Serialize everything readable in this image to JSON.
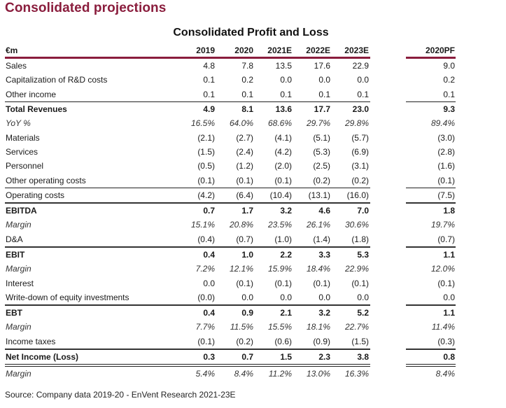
{
  "page_title": "Consolidated projections",
  "table": {
    "title": "Consolidated Profit and Loss",
    "unit_label": "€m",
    "columns": [
      "2019",
      "2020",
      "2021E",
      "2022E",
      "2023E"
    ],
    "pf_column": "2020PF",
    "rows": [
      {
        "label": "Sales",
        "style": "normal",
        "values": [
          "4.8",
          "7.8",
          "13.5",
          "17.6",
          "22.9"
        ],
        "pf": "9.0"
      },
      {
        "label": "Capitalization of R&D costs",
        "style": "normal",
        "values": [
          "0.1",
          "0.2",
          "0.0",
          "0.0",
          "0.0"
        ],
        "pf": "0.2"
      },
      {
        "label": "Other income",
        "style": "normal",
        "values": [
          "0.1",
          "0.1",
          "0.1",
          "0.1",
          "0.1"
        ],
        "pf": "0.1"
      },
      {
        "label": "Total Revenues",
        "style": "bold",
        "line": "thin",
        "values": [
          "4.9",
          "8.1",
          "13.6",
          "17.7",
          "23.0"
        ],
        "pf": "9.3"
      },
      {
        "label": "YoY %",
        "style": "italic",
        "values": [
          "16.5%",
          "64.0%",
          "68.6%",
          "29.7%",
          "29.8%"
        ],
        "pf": "89.4%"
      },
      {
        "label": "Materials",
        "style": "normal",
        "values": [
          "(2.1)",
          "(2.7)",
          "(4.1)",
          "(5.1)",
          "(5.7)"
        ],
        "pf": "(3.0)"
      },
      {
        "label": "Services",
        "style": "normal",
        "values": [
          "(1.5)",
          "(2.4)",
          "(4.2)",
          "(5.3)",
          "(6.9)"
        ],
        "pf": "(2.8)"
      },
      {
        "label": "Personnel",
        "style": "normal",
        "values": [
          "(0.5)",
          "(1.2)",
          "(2.0)",
          "(2.5)",
          "(3.1)"
        ],
        "pf": "(1.6)"
      },
      {
        "label": "Other operating costs",
        "style": "normal",
        "values": [
          "(0.1)",
          "(0.1)",
          "(0.1)",
          "(0.2)",
          "(0.2)"
        ],
        "pf": "(0.1)"
      },
      {
        "label": "Operating costs",
        "style": "normal",
        "line": "thin",
        "values": [
          "(4.2)",
          "(6.4)",
          "(10.4)",
          "(13.1)",
          "(16.0)"
        ],
        "pf": "(7.5)"
      },
      {
        "label": "EBITDA",
        "style": "bold",
        "line": "thick",
        "values": [
          "0.7",
          "1.7",
          "3.2",
          "4.6",
          "7.0"
        ],
        "pf": "1.8"
      },
      {
        "label": "Margin",
        "style": "italic",
        "values": [
          "15.1%",
          "20.8%",
          "23.5%",
          "26.1%",
          "30.6%"
        ],
        "pf": "19.7%"
      },
      {
        "label": "D&A",
        "style": "normal",
        "values": [
          "(0.4)",
          "(0.7)",
          "(1.0)",
          "(1.4)",
          "(1.8)"
        ],
        "pf": "(0.7)"
      },
      {
        "label": "EBIT",
        "style": "bold",
        "line": "thick",
        "values": [
          "0.4",
          "1.0",
          "2.2",
          "3.3",
          "5.3"
        ],
        "pf": "1.1"
      },
      {
        "label": "Margin",
        "style": "italic",
        "values": [
          "7.2%",
          "12.1%",
          "15.9%",
          "18.4%",
          "22.9%"
        ],
        "pf": "12.0%"
      },
      {
        "label": "Interest",
        "style": "normal",
        "values": [
          "0.0",
          "(0.1)",
          "(0.1)",
          "(0.1)",
          "(0.1)"
        ],
        "pf": "(0.1)"
      },
      {
        "label": "Write-down of equity investments",
        "style": "normal",
        "values": [
          "(0.0)",
          "0.0",
          "0.0",
          "0.0",
          "0.0"
        ],
        "pf": "0.0"
      },
      {
        "label": "EBT",
        "style": "bold",
        "line": "thick",
        "values": [
          "0.4",
          "0.9",
          "2.1",
          "3.2",
          "5.2"
        ],
        "pf": "1.1"
      },
      {
        "label": "Margin",
        "style": "italic",
        "values": [
          "7.7%",
          "11.5%",
          "15.5%",
          "18.1%",
          "22.7%"
        ],
        "pf": "11.4%"
      },
      {
        "label": "Income taxes",
        "style": "normal",
        "values": [
          "(0.1)",
          "(0.2)",
          "(0.6)",
          "(0.9)",
          "(1.5)"
        ],
        "pf": "(0.3)"
      },
      {
        "label": "Net Income (Loss)",
        "style": "bold",
        "line": "thick",
        "values": [
          "0.3",
          "0.7",
          "1.5",
          "2.3",
          "3.8"
        ],
        "pf": "0.8"
      },
      {
        "label": "Margin",
        "style": "italic",
        "line": "double",
        "values": [
          "5.4%",
          "8.4%",
          "11.2%",
          "13.0%",
          "16.3%"
        ],
        "pf": "8.4%"
      }
    ]
  },
  "source": "Source: Company data 2019-20 - EnVent Research 2021-23E"
}
